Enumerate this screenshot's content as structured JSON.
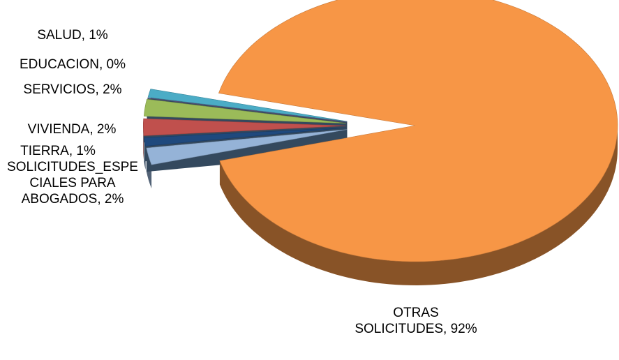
{
  "chart_data": {
    "type": "pie",
    "labels": [
      "SOLICITUDES_ESPECIALES PARA ABOGADOS, 2%",
      "TIERRA, 1%",
      "VIVIENDA, 2%",
      "SERVICIOS, 2%",
      "EDUCACION, 0%",
      "SALUD, 1%",
      "OTRAS SOLICITUDES, 92%"
    ],
    "values": [
      2,
      1,
      2,
      2,
      0,
      1,
      92
    ],
    "colors": [
      "#95b3d7",
      "#1f497d",
      "#c0504d",
      "#9bbb59",
      "#8064a2",
      "#4bacc6",
      "#f79646"
    ],
    "exploded": [
      true,
      true,
      true,
      true,
      true,
      true,
      false
    ]
  }
}
